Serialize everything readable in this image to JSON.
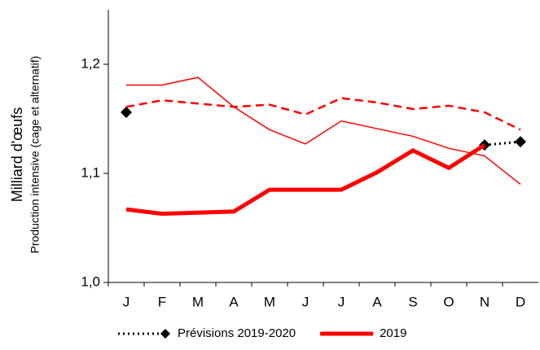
{
  "chart_data": {
    "type": "line",
    "ylabel": "Milliard d'œufs",
    "ylabel2": "Production intensive (cage et alternatif)",
    "categories": [
      "J",
      "F",
      "M",
      "A",
      "M",
      "J",
      "J",
      "A",
      "S",
      "O",
      "N",
      "D"
    ],
    "ylim": [
      1.0,
      1.25
    ],
    "yticks": [
      {
        "value": 1.0,
        "label": "1,0"
      },
      {
        "value": 1.1,
        "label": "1,1"
      },
      {
        "value": 1.2,
        "label": "1,2"
      }
    ],
    "series": [
      {
        "color": "#ff0000",
        "width": 1.5,
        "style": "solid",
        "values": [
          1.181,
          1.181,
          1.188,
          1.161,
          1.14,
          1.127,
          1.148,
          1.141,
          1.134,
          1.123,
          1.116,
          1.09
        ]
      },
      {
        "color": "#ff0000",
        "width": 2.5,
        "style": "dashed",
        "values": [
          1.161,
          1.167,
          1.164,
          1.161,
          1.163,
          1.154,
          1.169,
          1.165,
          1.159,
          1.162,
          1.156,
          1.14
        ]
      },
      {
        "name": "Prévisions 2019-2020",
        "color": "#000000",
        "width": 3,
        "style": "dotted",
        "marker": "diamond",
        "values": [
          1.156,
          null,
          null,
          null,
          null,
          null,
          null,
          null,
          null,
          null,
          1.126,
          1.129
        ]
      },
      {
        "name": "2019",
        "color": "#ff0000",
        "width": 5,
        "style": "solid",
        "values": [
          1.067,
          1.063,
          1.064,
          1.065,
          1.085,
          1.085,
          1.085,
          1.101,
          1.121,
          1.105,
          1.126,
          null
        ]
      }
    ]
  }
}
